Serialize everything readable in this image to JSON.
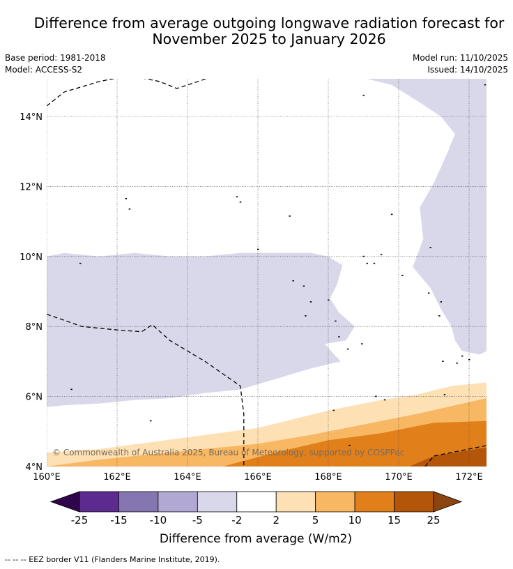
{
  "title_line1": "Difference from average outgoing longwave radiation forecast for",
  "title_line2": "November 2025 to January 2026",
  "base_period": "Base period: 1981-2018",
  "model": "Model: ACCESS-S2",
  "model_run": "Model run: 11/10/2025",
  "issued": "Issued: 14/10/2025",
  "lat_labels": [
    {
      "lat": 14,
      "label": "14°N"
    },
    {
      "lat": 12,
      "label": "12°N"
    },
    {
      "lat": 10,
      "label": "10°N"
    },
    {
      "lat": 8,
      "label": "8°N"
    },
    {
      "lat": 6,
      "label": "6°N"
    },
    {
      "lat": 4,
      "label": "4°N"
    }
  ],
  "lon_labels": [
    {
      "lon": 160,
      "label": "160°E"
    },
    {
      "lon": 162,
      "label": "162°E"
    },
    {
      "lon": 164,
      "label": "164°E"
    },
    {
      "lon": 166,
      "label": "166°E"
    },
    {
      "lon": 168,
      "label": "168°E"
    },
    {
      "lon": 170,
      "label": "170°E"
    },
    {
      "lon": 172,
      "label": "172°E"
    }
  ],
  "extent": {
    "lon_min": 160,
    "lon_max": 172.5,
    "lat_min": 4,
    "lat_max": 15.1
  },
  "copyright": "© Commonwealth of Australia 2025, Bureau of Meteorology, supported by COSPPac",
  "colorbar": {
    "label": "Difference from average (W/m2)",
    "ticks": [
      "-25",
      "-15",
      "-10",
      "-5",
      "-2",
      "2",
      "5",
      "10",
      "15",
      "25"
    ],
    "colors": [
      "#5d2a8f",
      "#8575b0",
      "#b1a9d3",
      "#d8d8ea",
      "#ffffff",
      "#fde1b5",
      "#f8b762",
      "#e1801b",
      "#b35609"
    ],
    "extend_low_color": "#2f064c",
    "extend_high_color": "#8a4510"
  },
  "eez_note": "--  --  -- EEZ border V11 (Flanders Marine Institute, 2019).",
  "regions": [
    {
      "name": "negative-2-to-5-east",
      "color": "#d8d8ea",
      "coords": [
        [
          169.0,
          15.1
        ],
        [
          172.5,
          15.1
        ],
        [
          172.5,
          7.3
        ],
        [
          172.3,
          7.2
        ],
        [
          171.8,
          7.3
        ],
        [
          171.6,
          7.6
        ],
        [
          171.5,
          8.0
        ],
        [
          171.2,
          8.5
        ],
        [
          170.9,
          9.1
        ],
        [
          170.4,
          9.7
        ],
        [
          170.7,
          10.5
        ],
        [
          170.6,
          11.4
        ],
        [
          171.0,
          12.1
        ],
        [
          171.4,
          13.0
        ],
        [
          171.6,
          13.5
        ],
        [
          171.2,
          14.0
        ],
        [
          170.6,
          14.4
        ],
        [
          169.8,
          14.9
        ]
      ]
    },
    {
      "name": "negative-2-to-5-west",
      "color": "#d8d8ea",
      "coords": [
        [
          160.0,
          10.0
        ],
        [
          160.5,
          10.1
        ],
        [
          161.5,
          10.0
        ],
        [
          162.5,
          10.1
        ],
        [
          163.5,
          10.0
        ],
        [
          164.5,
          10.0
        ],
        [
          165.5,
          10.1
        ],
        [
          166.5,
          10.1
        ],
        [
          167.5,
          10.1
        ],
        [
          168.0,
          10.0
        ],
        [
          168.4,
          9.75
        ],
        [
          168.25,
          9.2
        ],
        [
          168.05,
          8.8
        ],
        [
          168.3,
          8.4
        ],
        [
          168.75,
          8.0
        ],
        [
          168.5,
          7.6
        ],
        [
          167.9,
          7.5
        ],
        [
          168.35,
          7.0
        ],
        [
          167.5,
          6.8
        ],
        [
          166.5,
          6.5
        ],
        [
          165.5,
          6.2
        ],
        [
          164.5,
          6.1
        ],
        [
          163.5,
          5.95
        ],
        [
          162.5,
          5.9
        ],
        [
          161.5,
          5.8
        ],
        [
          160.5,
          5.75
        ],
        [
          160.0,
          5.7
        ]
      ]
    },
    {
      "name": "positive-2-to-5",
      "color": "#fde1b5",
      "coords": [
        [
          160.0,
          4.4
        ],
        [
          161.5,
          4.5
        ],
        [
          163.0,
          4.7
        ],
        [
          164.5,
          4.9
        ],
        [
          166.0,
          5.1
        ],
        [
          167.0,
          5.35
        ],
        [
          168.0,
          5.6
        ],
        [
          169.5,
          5.9
        ],
        [
          170.5,
          6.05
        ],
        [
          171.5,
          6.3
        ],
        [
          172.5,
          6.4
        ],
        [
          172.5,
          4.0
        ],
        [
          160.0,
          4.0
        ]
      ]
    },
    {
      "name": "positive-5-to-10",
      "color": "#f8b762",
      "coords": [
        [
          160.0,
          4.0
        ],
        [
          161.5,
          4.2
        ],
        [
          163.0,
          4.35
        ],
        [
          164.5,
          4.5
        ],
        [
          166.0,
          4.65
        ],
        [
          167.5,
          4.9
        ],
        [
          169.0,
          5.2
        ],
        [
          170.5,
          5.5
        ],
        [
          172.5,
          5.95
        ],
        [
          172.5,
          4.0
        ]
      ]
    },
    {
      "name": "positive-10-to-15",
      "color": "#e1801b",
      "coords": [
        [
          165.0,
          4.0
        ],
        [
          166.5,
          4.4
        ],
        [
          168.0,
          4.75
        ],
        [
          169.5,
          4.95
        ],
        [
          171.0,
          5.25
        ],
        [
          172.5,
          5.3
        ],
        [
          172.5,
          4.0
        ]
      ]
    },
    {
      "name": "positive-15-to-25",
      "color": "#b35609",
      "coords": [
        [
          170.3,
          4.0
        ],
        [
          171.0,
          4.3
        ],
        [
          172.5,
          4.55
        ],
        [
          172.5,
          4.0
        ]
      ]
    }
  ],
  "eez_borders": [
    [
      [
        160.0,
        14.3
      ],
      [
        160.5,
        14.7
      ],
      [
        161.5,
        15.0
      ],
      [
        162.0,
        15.1
      ]
    ],
    [
      [
        162.7,
        15.1
      ],
      [
        163.2,
        15.0
      ],
      [
        163.7,
        14.8
      ],
      [
        164.0,
        14.9
      ],
      [
        164.6,
        15.1
      ]
    ],
    [
      [
        160.0,
        8.35
      ],
      [
        161.0,
        8.0
      ],
      [
        162.0,
        7.9
      ],
      [
        162.7,
        7.85
      ],
      [
        163.0,
        8.05
      ],
      [
        163.5,
        7.6
      ],
      [
        164.5,
        7.0
      ],
      [
        165.5,
        6.3
      ],
      [
        165.6,
        5.5
      ],
      [
        165.6,
        4.0
      ]
    ],
    [
      [
        170.75,
        4.0
      ],
      [
        171.0,
        4.3
      ],
      [
        172.5,
        4.6
      ]
    ]
  ],
  "islands": [
    [
      160.95,
      9.8
    ],
    [
      162.25,
      11.65
    ],
    [
      162.35,
      11.35
    ],
    [
      165.4,
      11.7
    ],
    [
      165.5,
      11.55
    ],
    [
      166.0,
      10.2
    ],
    [
      166.9,
      11.15
    ],
    [
      168.0,
      8.75
    ],
    [
      167.0,
      9.3
    ],
    [
      167.3,
      9.15
    ],
    [
      167.5,
      8.7
    ],
    [
      167.35,
      8.3
    ],
    [
      168.2,
      8.15
    ],
    [
      168.3,
      7.7
    ],
    [
      168.55,
      7.35
    ],
    [
      168.95,
      7.5
    ],
    [
      169.0,
      10.0
    ],
    [
      169.1,
      9.8
    ],
    [
      169.3,
      9.8
    ],
    [
      169.5,
      10.05
    ],
    [
      169.8,
      11.2
    ],
    [
      170.1,
      9.45
    ],
    [
      170.9,
      10.25
    ],
    [
      170.85,
      8.95
    ],
    [
      171.2,
      8.7
    ],
    [
      171.15,
      8.3
    ],
    [
      171.25,
      7.0
    ],
    [
      171.3,
      6.05
    ],
    [
      169.6,
      5.9
    ],
    [
      169.35,
      6.0
    ],
    [
      168.15,
      5.6
    ],
    [
      168.6,
      4.6
    ],
    [
      172.45,
      14.9
    ],
    [
      169.0,
      14.6
    ],
    [
      160.7,
      6.2
    ],
    [
      162.95,
      5.3
    ],
    [
      171.65,
      6.95
    ],
    [
      172.0,
      7.05
    ],
    [
      171.8,
      7.15
    ]
  ]
}
